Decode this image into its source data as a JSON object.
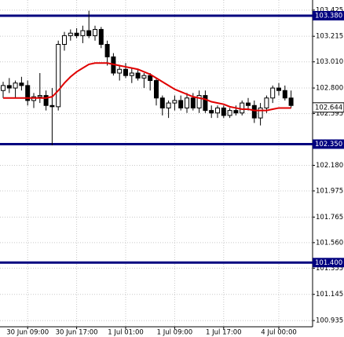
{
  "chart_data": {
    "type": "candlestick",
    "categories": [
      null,
      null,
      null,
      null,
      "30 Jun 09:00",
      null,
      null,
      null,
      null,
      null,
      null,
      null,
      "30 Jun 17:00",
      null,
      null,
      null,
      null,
      null,
      null,
      null,
      "1 Jul 01:00",
      null,
      null,
      null,
      null,
      null,
      null,
      null,
      "1 Jul 09:00",
      null,
      null,
      null,
      null,
      null,
      null,
      null,
      "1 Jul 17:00",
      null,
      null,
      null,
      null,
      null,
      null,
      null,
      null,
      "4 Jul 00:00",
      null,
      null
    ],
    "open": [
      102.78,
      102.82,
      102.8,
      102.84,
      102.82,
      102.7,
      102.73,
      102.74,
      102.66,
      102.65,
      103.15,
      103.22,
      103.24,
      103.22,
      103.26,
      103.22,
      103.27,
      103.15,
      103.05,
      102.92,
      102.95,
      102.9,
      102.92,
      102.88,
      102.9,
      102.86,
      102.72,
      102.64,
      102.68,
      102.7,
      102.64,
      102.72,
      102.64,
      102.74,
      102.62,
      102.6,
      102.64,
      102.58,
      102.62,
      102.6,
      102.68,
      102.66,
      102.56,
      102.64,
      102.72,
      102.8,
      102.78,
      102.72
    ],
    "high": [
      102.85,
      102.88,
      102.86,
      102.89,
      102.86,
      102.76,
      102.92,
      102.78,
      102.8,
      103.18,
      103.25,
      103.27,
      103.28,
      103.3,
      103.42,
      103.3,
      103.29,
      103.18,
      103.08,
      102.98,
      103.0,
      102.96,
      102.95,
      102.92,
      102.92,
      102.88,
      102.74,
      102.7,
      102.74,
      102.74,
      102.76,
      102.76,
      102.78,
      102.78,
      102.66,
      102.66,
      102.66,
      102.64,
      102.66,
      102.7,
      102.72,
      102.7,
      102.68,
      102.74,
      102.82,
      102.84,
      102.82,
      102.78
    ],
    "low": [
      102.72,
      102.76,
      102.72,
      102.78,
      102.66,
      102.64,
      102.68,
      102.62,
      102.34,
      102.62,
      103.1,
      103.18,
      103.2,
      103.16,
      103.2,
      103.18,
      103.12,
      102.98,
      102.9,
      102.86,
      102.88,
      102.84,
      102.86,
      102.8,
      102.78,
      102.66,
      102.58,
      102.56,
      102.62,
      102.62,
      102.6,
      102.62,
      102.6,
      102.6,
      102.56,
      102.56,
      102.56,
      102.56,
      102.58,
      102.58,
      102.62,
      102.52,
      102.5,
      102.6,
      102.68,
      102.74,
      102.7,
      102.64
    ],
    "close": [
      102.82,
      102.8,
      102.84,
      102.82,
      102.7,
      102.73,
      102.74,
      102.66,
      102.65,
      103.15,
      103.22,
      103.24,
      103.22,
      103.26,
      103.22,
      103.27,
      103.15,
      103.05,
      102.92,
      102.95,
      102.9,
      102.92,
      102.88,
      102.9,
      102.86,
      102.72,
      102.64,
      102.68,
      102.7,
      102.64,
      102.72,
      102.64,
      102.74,
      102.62,
      102.6,
      102.64,
      102.58,
      102.62,
      102.6,
      102.68,
      102.66,
      102.56,
      102.64,
      102.72,
      102.8,
      102.78,
      102.72,
      102.66
    ],
    "ma": {
      "color": "#e00000",
      "values": [
        102.72,
        102.72,
        102.72,
        102.72,
        102.72,
        102.72,
        102.72,
        102.72,
        102.73,
        102.78,
        102.84,
        102.89,
        102.93,
        102.96,
        102.99,
        103.0,
        103.0,
        103.0,
        102.99,
        102.98,
        102.97,
        102.96,
        102.95,
        102.93,
        102.91,
        102.88,
        102.85,
        102.82,
        102.79,
        102.77,
        102.75,
        102.73,
        102.72,
        102.71,
        102.69,
        102.68,
        102.67,
        102.65,
        102.64,
        102.63,
        102.63,
        102.62,
        102.62,
        102.62,
        102.63,
        102.64,
        102.64,
        102.64
      ]
    },
    "bull_color": "#ffffff",
    "bear_color": "#000000",
    "levels": {
      "color": "#00007f",
      "items": [
        {
          "value": 103.38,
          "label": "103.380"
        },
        {
          "value": 102.35,
          "label": "102.350"
        },
        {
          "value": 101.4,
          "label": "101.400"
        }
      ]
    },
    "current": {
      "value": 102.644,
      "label": "102.644"
    },
    "ylim": [
      100.885,
      103.506
    ],
    "yticks": [
      103.425,
      103.215,
      {
        "value": 103.01,
        "label": "103.010"
      },
      {
        "value": 102.8,
        "label": "102.800"
      },
      102.595,
      {
        "value": 102.18,
        "label": "102.180"
      },
      101.975,
      101.765,
      {
        "value": 101.56,
        "label": "101.560"
      },
      101.355,
      101.145,
      100.935
    ],
    "grid": true
  }
}
